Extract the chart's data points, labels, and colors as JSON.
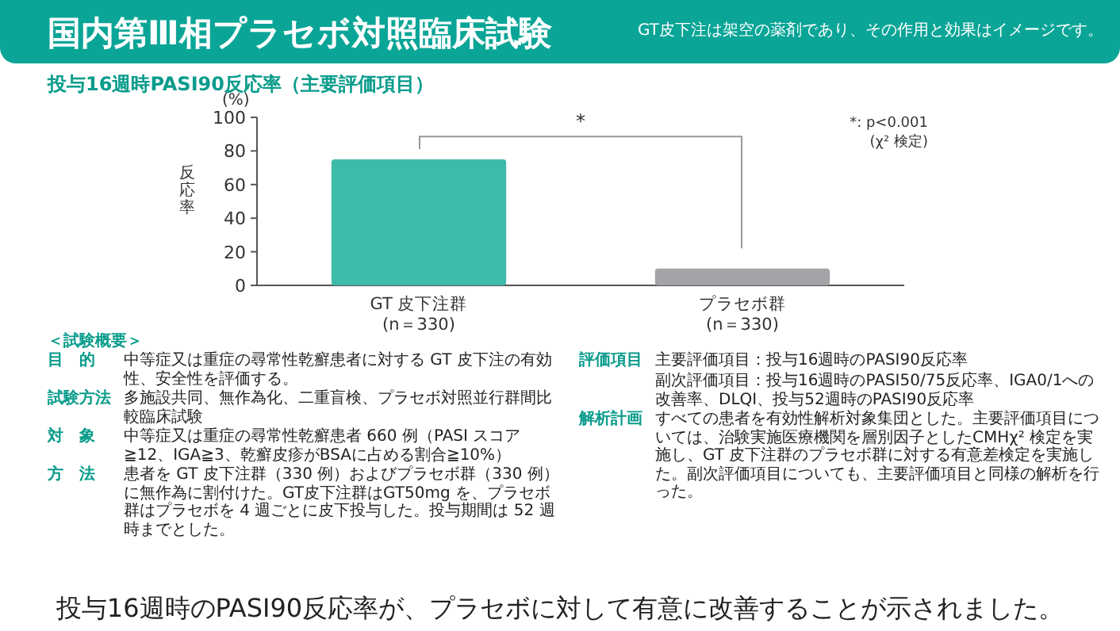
{
  "chart_data": {
    "type": "bar",
    "title": "国内第Ⅲ相プラセボ対照臨床試験",
    "subtitle": "投与16週時PASI90反応率（主要評価項目）",
    "ylabel": "反応率",
    "categories": [
      "GT 皮下注群\n(n＝330)",
      "プラセボ群\n(n＝330)"
    ],
    "values": [
      75,
      10
    ],
    "colors": [
      "#3dbba8",
      "#a3a3a8"
    ],
    "ylim": [
      0,
      100
    ],
    "yticks": [
      0,
      20,
      40,
      60,
      80,
      100
    ],
    "annotations": [
      "(%)",
      "*",
      "*: p<0.001",
      "(χ² 検定)",
      "GT皮下注は架空の薬剤であり、その作用と効果はイメージです。",
      "＜試験概要＞",
      "目　的",
      "中等症又は重症の尋常性乾癬患者に対する GT 皮下注の有効性、安全性を評価する。",
      "試験方法",
      "多施設共同、無作為化、二重盲検、プラセボ対照並行群間比較臨床試験",
      "対　象",
      "中等症又は重症の尋常性乾癬患者 660 例（PASI スコア≧12、IGA≧3、乾癬皮疹がBSAに占める割合≧10%）",
      "方　法",
      "患者を GT 皮下注群（330 例）およびプラセボ群（330 例）に無作為に割付けた。GT皮下注群はGT50mg を、プラセボ群はプラセボを 4 週ごとに皮下投与した。投与期間は 52 週時までとした。",
      "評価項目",
      "主要評価項目：投与16週時のPASI90反応率",
      "副次評価項目：投与16週時のPASI50/75反応率、IGA0/1への改善率、DLQI、投与52週時のPASI90反応率",
      "解析計画",
      "すべての患者を有効性解析対象集団とした。主要評価項目については、治験実施医療機関を層別因子としたCMHχ² 検定を実施し、GT 皮下注群のプラセボ群に対する有意差検定を実施した。副次評価項目についても、主要評価項目と同様の解析を行った。",
      "投与16週時のPASI90反応率が、プラセボに対して有意に改善することが示されました。"
    ]
  }
}
